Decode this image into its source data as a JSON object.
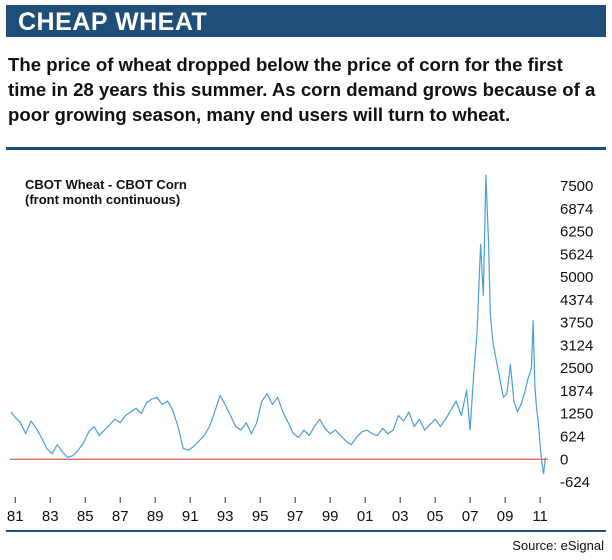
{
  "header": {
    "title": "CHEAP WHEAT",
    "subtitle": "The price of wheat dropped below the price of corn for the first time in 28 years this summer. As corn demand grows because of a poor growing season, many end users will turn to wheat."
  },
  "footer": {
    "source": "Source: eSignal"
  },
  "colors": {
    "brand": "#1f4e79",
    "series": "#4a9fd8",
    "zero_line": "#c0392b"
  },
  "chart_data": {
    "type": "line",
    "title": "",
    "label_lines": [
      "CBOT Wheat - CBOT Corn",
      "(front month continuous)"
    ],
    "xlabel": "",
    "ylabel": "",
    "ylim": [
      -624,
      7500
    ],
    "xlim": [
      1980.7,
      2011.45
    ],
    "y_ticks": [
      7500,
      6874,
      6250,
      5624,
      5000,
      4374,
      3750,
      3124,
      2500,
      1874,
      1250,
      624,
      0,
      -624
    ],
    "x_ticks": [
      {
        "label": "81",
        "value": 1981
      },
      {
        "label": "83",
        "value": 1983
      },
      {
        "label": "85",
        "value": 1985
      },
      {
        "label": "87",
        "value": 1987
      },
      {
        "label": "89",
        "value": 1989
      },
      {
        "label": "91",
        "value": 1991
      },
      {
        "label": "93",
        "value": 1993
      },
      {
        "label": "95",
        "value": 1995
      },
      {
        "label": "97",
        "value": 1997
      },
      {
        "label": "99",
        "value": 1999
      },
      {
        "label": "01",
        "value": 2001
      },
      {
        "label": "03",
        "value": 2003
      },
      {
        "label": "05",
        "value": 2005
      },
      {
        "label": "07",
        "value": 2007
      },
      {
        "label": "09",
        "value": 2009
      },
      {
        "label": "11",
        "value": 2011
      }
    ],
    "grid": false,
    "reference_line": 0,
    "series": [
      {
        "x": [
          1980.75,
          1981.0,
          1981.3,
          1981.6,
          1981.9,
          1982.2,
          1982.5,
          1982.8,
          1983.1,
          1983.4,
          1983.7,
          1984.0,
          1984.3,
          1984.6,
          1984.9,
          1985.2,
          1985.5,
          1985.8,
          1986.1,
          1986.4,
          1986.7,
          1987.0,
          1987.3,
          1987.6,
          1987.9,
          1988.2,
          1988.5,
          1988.8,
          1989.1,
          1989.4,
          1989.7,
          1990.0,
          1990.3,
          1990.6,
          1990.9,
          1991.2,
          1991.5,
          1991.8,
          1992.1,
          1992.4,
          1992.7,
          1993.0,
          1993.3,
          1993.6,
          1993.9,
          1994.2,
          1994.5,
          1994.8,
          1995.1,
          1995.4,
          1995.7,
          1996.0,
          1996.3,
          1996.6,
          1996.9,
          1997.2,
          1997.5,
          1997.8,
          1998.1,
          1998.4,
          1998.7,
          1999.0,
          1999.3,
          1999.6,
          1999.9,
          2000.2,
          2000.5,
          2000.8,
          2001.1,
          2001.4,
          2001.7,
          2002.0,
          2002.3,
          2002.6,
          2002.9,
          2003.2,
          2003.5,
          2003.8,
          2004.1,
          2004.4,
          2004.7,
          2005.0,
          2005.3,
          2005.6,
          2005.9,
          2006.2,
          2006.5,
          2006.8,
          2007.0,
          2007.2,
          2007.4,
          2007.6,
          2007.75,
          2007.9,
          2008.05,
          2008.15,
          2008.3,
          2008.5,
          2008.7,
          2008.9,
          2009.1,
          2009.3,
          2009.5,
          2009.7,
          2009.9,
          2010.1,
          2010.3,
          2010.5,
          2010.6,
          2010.7,
          2010.8,
          2010.9,
          2011.0,
          2011.1,
          2011.2,
          2011.3
        ],
        "values": [
          1300,
          1150,
          1000,
          700,
          1050,
          850,
          600,
          300,
          150,
          400,
          200,
          50,
          100,
          250,
          450,
          750,
          900,
          650,
          800,
          950,
          1100,
          1000,
          1200,
          1300,
          1400,
          1250,
          1550,
          1650,
          1700,
          1500,
          1600,
          1350,
          900,
          300,
          250,
          350,
          500,
          650,
          900,
          1300,
          1750,
          1500,
          1200,
          900,
          800,
          1000,
          700,
          1000,
          1600,
          1800,
          1500,
          1700,
          1300,
          1000,
          700,
          600,
          800,
          650,
          900,
          1100,
          850,
          700,
          800,
          650,
          500,
          400,
          600,
          750,
          800,
          700,
          650,
          850,
          700,
          800,
          1200,
          1050,
          1300,
          900,
          1100,
          800,
          950,
          1100,
          900,
          1100,
          1350,
          1600,
          1200,
          1900,
          800,
          2300,
          3500,
          5900,
          4500,
          7800,
          6000,
          4000,
          3200,
          2700,
          2200,
          1700,
          1800,
          2600,
          1600,
          1300,
          1500,
          1800,
          2200,
          2500,
          3800,
          2000,
          1400,
          1000,
          400,
          -100,
          -400,
          50
        ]
      }
    ],
    "source": "Source: eSignal"
  }
}
